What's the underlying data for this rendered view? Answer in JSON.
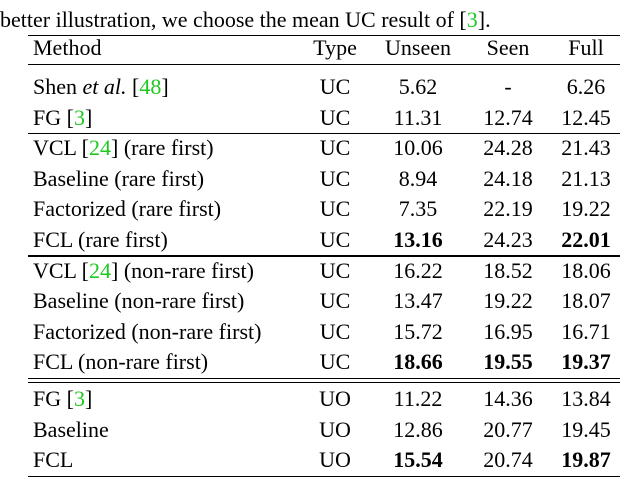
{
  "caption": [
    {
      "text": "better illustration, we choose the mean UC result of ["
    },
    {
      "text": "3",
      "style": "cite"
    },
    {
      "text": "]."
    }
  ],
  "table": {
    "header": [
      "Method",
      "Type",
      "Unseen",
      "Seen",
      "Full"
    ],
    "groups": [
      [
        {
          "method": [
            {
              "text": "Shen "
            },
            {
              "text": "et al.",
              "style": "italic"
            },
            {
              "text": " ["
            },
            {
              "text": "48",
              "style": "cite"
            },
            {
              "text": "]"
            }
          ],
          "type": "UC",
          "values": [
            "5.62",
            "-",
            "6.26"
          ],
          "bold": [
            false,
            false,
            false
          ]
        },
        {
          "method": [
            {
              "text": "FG ["
            },
            {
              "text": "3",
              "style": "cite"
            },
            {
              "text": "]"
            }
          ],
          "type": "UC",
          "values": [
            "11.31",
            "12.74",
            "12.45"
          ],
          "bold": [
            false,
            false,
            false
          ]
        }
      ],
      [
        {
          "method": [
            {
              "text": "VCL ["
            },
            {
              "text": "24",
              "style": "cite"
            },
            {
              "text": "] (rare first)"
            }
          ],
          "type": "UC",
          "values": [
            "10.06",
            "24.28",
            "21.43"
          ],
          "bold": [
            false,
            false,
            false
          ]
        },
        {
          "method": [
            {
              "text": "Baseline (rare first)"
            }
          ],
          "type": "UC",
          "values": [
            "8.94",
            "24.18",
            "21.13"
          ],
          "bold": [
            false,
            false,
            false
          ]
        },
        {
          "method": [
            {
              "text": "Factorized (rare first)"
            }
          ],
          "type": "UC",
          "values": [
            "7.35",
            "22.19",
            "19.22"
          ],
          "bold": [
            false,
            false,
            false
          ]
        },
        {
          "method": [
            {
              "text": "FCL (rare first)"
            }
          ],
          "type": "UC",
          "values": [
            "13.16",
            "24.23",
            "22.01"
          ],
          "bold": [
            true,
            false,
            true
          ]
        }
      ],
      [
        {
          "method": [
            {
              "text": "VCL ["
            },
            {
              "text": "24",
              "style": "cite"
            },
            {
              "text": "] (non-rare first)"
            }
          ],
          "type": "UC",
          "values": [
            "16.22",
            "18.52",
            "18.06"
          ],
          "bold": [
            false,
            false,
            false
          ]
        },
        {
          "method": [
            {
              "text": "Baseline (non-rare first)"
            }
          ],
          "type": "UC",
          "values": [
            "13.47",
            "19.22",
            "18.07"
          ],
          "bold": [
            false,
            false,
            false
          ]
        },
        {
          "method": [
            {
              "text": "Factorized (non-rare first)"
            }
          ],
          "type": "UC",
          "values": [
            "15.72",
            "16.95",
            "16.71"
          ],
          "bold": [
            false,
            false,
            false
          ]
        },
        {
          "method": [
            {
              "text": "FCL (non-rare first)"
            }
          ],
          "type": "UC",
          "values": [
            "18.66",
            "19.55",
            "19.37"
          ],
          "bold": [
            true,
            true,
            true
          ]
        }
      ],
      [
        {
          "method": [
            {
              "text": "FG ["
            },
            {
              "text": "3",
              "style": "cite"
            },
            {
              "text": "]"
            }
          ],
          "type": "UO",
          "values": [
            "11.22",
            "14.36",
            "13.84"
          ],
          "bold": [
            false,
            false,
            false
          ]
        },
        {
          "method": [
            {
              "text": "Baseline"
            }
          ],
          "type": "UO",
          "values": [
            "12.86",
            "20.77",
            "19.45"
          ],
          "bold": [
            false,
            false,
            false
          ]
        },
        {
          "method": [
            {
              "text": "FCL"
            }
          ],
          "type": "UO",
          "values": [
            "15.54",
            "20.74",
            "19.87"
          ],
          "bold": [
            true,
            false,
            true
          ]
        }
      ]
    ]
  }
}
